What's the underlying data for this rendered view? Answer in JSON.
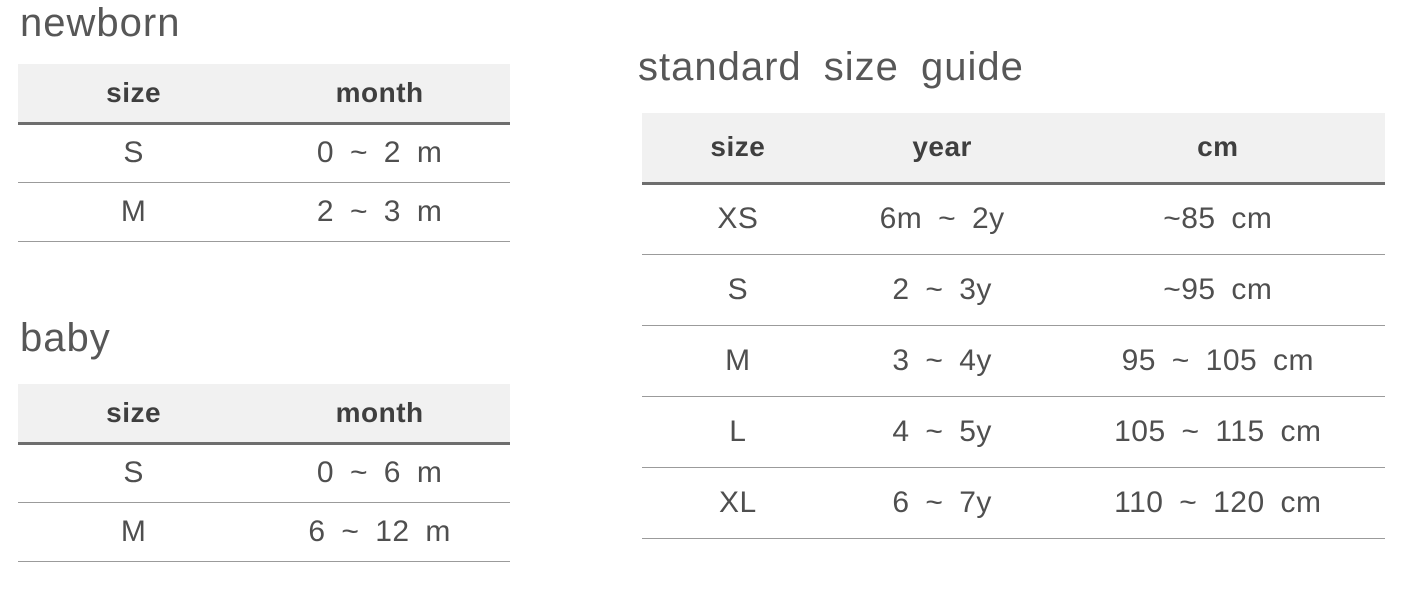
{
  "styles": {
    "header_bg": "#f1f1f1",
    "header_border": "#6e6e6e",
    "row_border": "#9b9b9b",
    "title_color": "#575757",
    "head_text": "#3f3f3f",
    "cell_text": "#4f4f4f",
    "page_bg": "#ffffff"
  },
  "tables": {
    "newborn": {
      "title": "newborn",
      "columns": [
        "size",
        "month"
      ],
      "rows": [
        [
          "S",
          "0 ~ 2 m"
        ],
        [
          "M",
          "2 ~ 3 m"
        ]
      ]
    },
    "baby": {
      "title": "baby",
      "columns": [
        "size",
        "month"
      ],
      "rows": [
        [
          "S",
          "0 ~ 6 m"
        ],
        [
          "M",
          "6 ~ 12 m"
        ]
      ]
    },
    "standard": {
      "title": "standard size guide",
      "columns": [
        "size",
        "year",
        "cm"
      ],
      "rows": [
        [
          "XS",
          "6m ~ 2y",
          "~85 cm"
        ],
        [
          "S",
          "2 ~ 3y",
          "~95 cm"
        ],
        [
          "M",
          "3 ~ 4y",
          "95 ~ 105 cm"
        ],
        [
          "L",
          "4 ~ 5y",
          "105 ~ 115 cm"
        ],
        [
          "XL",
          "6 ~ 7y",
          "110 ~ 120 cm"
        ]
      ]
    }
  }
}
